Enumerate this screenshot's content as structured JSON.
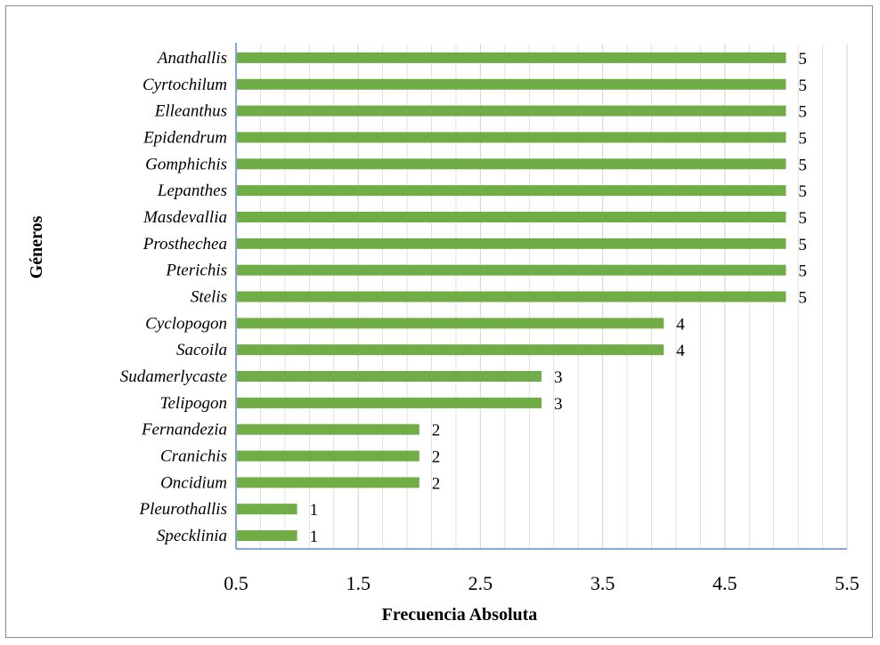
{
  "chart_data": {
    "type": "bar",
    "orientation": "horizontal",
    "title": "",
    "xlabel": "Frecuencia Absoluta",
    "ylabel": "Géneros",
    "categories": [
      "Anathallis",
      "Cyrtochilum",
      "Elleanthus",
      "Epidendrum",
      "Gomphichis",
      "Lepanthes",
      "Masdevallia",
      "Prosthechea",
      "Pterichis",
      "Stelis",
      "Cyclopogon",
      "Sacoila",
      "Sudamerlycaste",
      "Telipogon",
      "Fernandezia",
      "Cranichis",
      "Oncidium",
      "Pleurothallis",
      "Specklinia"
    ],
    "values": [
      5,
      5,
      5,
      5,
      5,
      5,
      5,
      5,
      5,
      5,
      4,
      4,
      3,
      3,
      2,
      2,
      2,
      1,
      1
    ],
    "data_labels": [
      "5",
      "5",
      "5",
      "5",
      "5",
      "5",
      "5",
      "5",
      "5",
      "5",
      "4",
      "4",
      "3",
      "3",
      "2",
      "2",
      "2",
      "1",
      "1"
    ],
    "xlim": [
      0.5,
      5.5
    ],
    "xticks": [
      "0.5",
      "1.5",
      "2.5",
      "3.5",
      "4.5",
      "5.5"
    ],
    "gridlines": true,
    "legend": "none",
    "bar_color": "#70ad47",
    "grid_color": "#d9d9d9",
    "axis_color": "#4472c4"
  }
}
